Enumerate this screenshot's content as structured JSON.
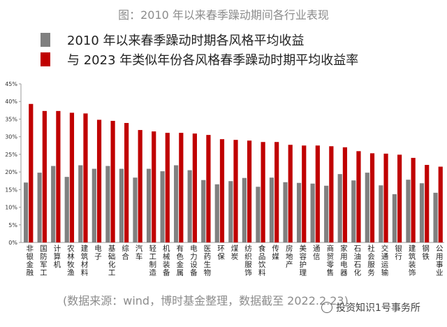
{
  "title": "图：2010 年以来春季躁动期间各行业表现",
  "source_note": "(数据来源：wind，博时基金整理，数据截至 2022.2.23)",
  "watermark": "投资知识1号事务所",
  "colors": {
    "series1": "#808080",
    "series2": "#c00000",
    "axis": "#9a9a9a"
  },
  "chart_data": {
    "type": "bar",
    "categories": [
      "非银金融",
      "国防军工",
      "计算机",
      "农林牧渔",
      "建筑材料",
      "电子",
      "基础化工",
      "综合",
      "汽车",
      "轻工制造",
      "机械装备",
      "有色金属",
      "电力设备",
      "医药生物",
      "环保",
      "煤炭",
      "纺织服饰",
      "食品饮料",
      "传媒",
      "房地产",
      "美容护理",
      "通信",
      "商贸零售",
      "家用电器",
      "石油石化",
      "社会服务",
      "交通运输",
      "银行",
      "建筑装饰",
      "钢铁",
      "公用事业"
    ],
    "series": [
      {
        "name": "2010 年以来春季躁动时期各风格平均收益",
        "values": [
          17.0,
          19.8,
          21.7,
          18.6,
          21.9,
          20.9,
          21.7,
          20.9,
          18.4,
          20.9,
          20.2,
          21.9,
          20.5,
          17.7,
          16.5,
          17.4,
          18.3,
          15.8,
          18.4,
          17.1,
          16.9,
          16.7,
          16.1,
          19.4,
          17.6,
          19.8,
          16.2,
          13.7,
          17.8,
          16.8,
          14.1
        ]
      },
      {
        "name": "与 2023 年类似年份各风格春季躁动时期平均收益率",
        "values": [
          39.3,
          37.3,
          37.3,
          36.8,
          36.6,
          34.8,
          34.5,
          33.9,
          31.9,
          31.5,
          31.1,
          31.1,
          30.9,
          30.5,
          29.3,
          29.1,
          28.9,
          28.5,
          28.5,
          27.7,
          27.5,
          27.5,
          27.3,
          27.0,
          25.9,
          25.3,
          25.2,
          24.9,
          24.0,
          22.0,
          21.5
        ]
      }
    ],
    "ylim": [
      0,
      45
    ],
    "yticks": [
      "0%",
      "5%",
      "10%",
      "15%",
      "20%",
      "25%",
      "30%",
      "35%",
      "40%",
      "45%"
    ],
    "xlabel": "",
    "ylabel": "",
    "grid": false,
    "legend_position": "top"
  }
}
